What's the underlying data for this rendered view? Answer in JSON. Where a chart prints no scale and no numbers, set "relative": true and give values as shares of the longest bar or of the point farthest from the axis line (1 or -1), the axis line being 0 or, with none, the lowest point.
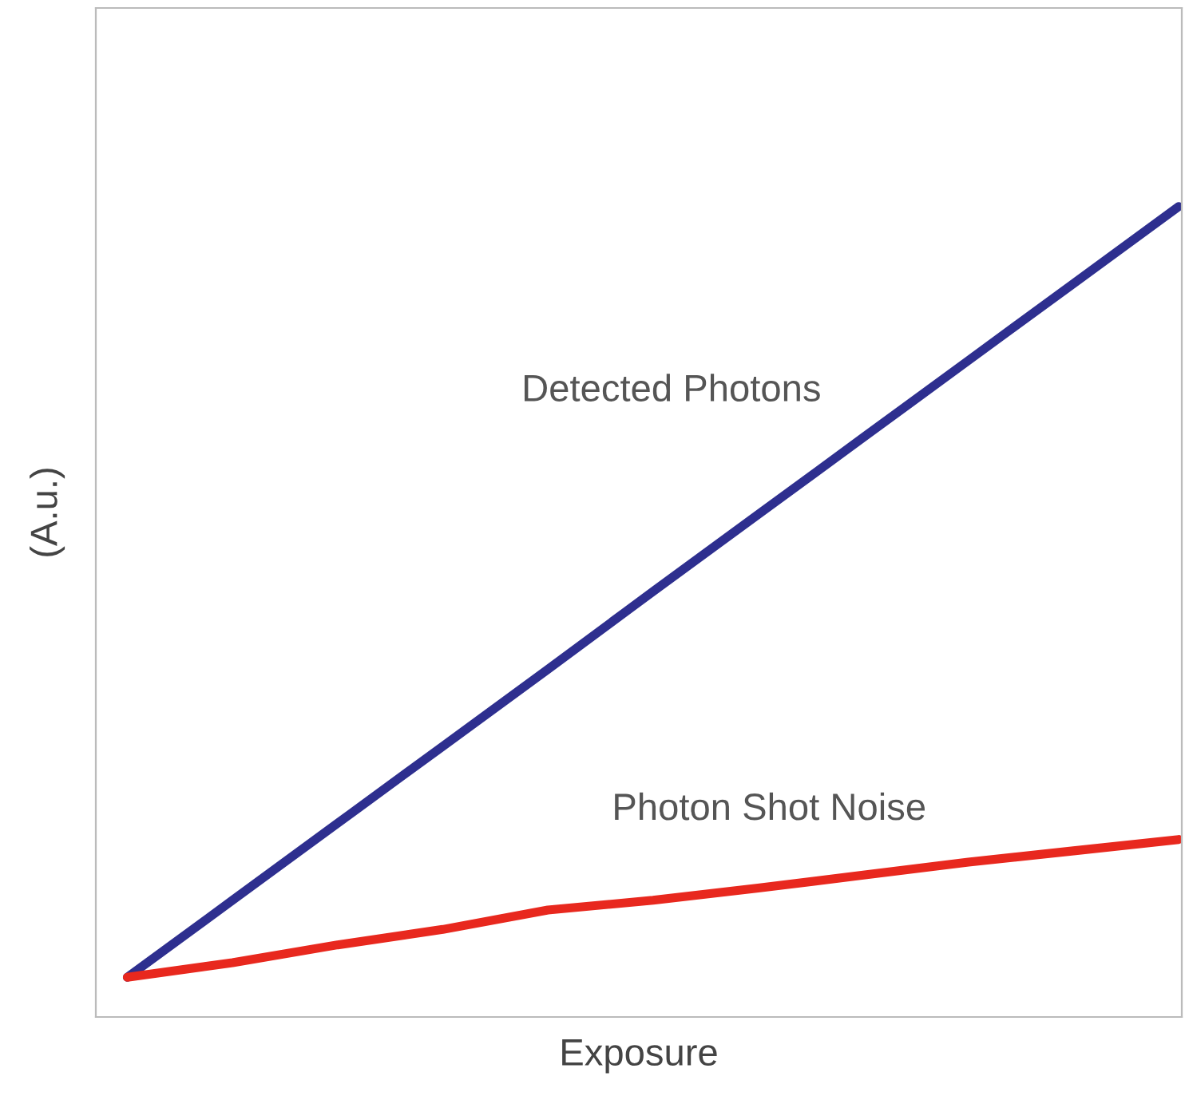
{
  "chart_data": {
    "type": "line",
    "relative": true,
    "xlabel": "Exposure",
    "ylabel": "(A.u.)",
    "categories": [
      null,
      null,
      null,
      null,
      null,
      null,
      null,
      null,
      null,
      null,
      null
    ],
    "series": [
      {
        "name": "Detected Photons",
        "color": "#2e2f8f",
        "values": [
          0.049,
          0.144,
          0.239,
          0.334,
          0.429,
          0.525,
          0.62,
          0.715,
          0.81,
          0.905,
          1
        ]
      },
      {
        "name": "Photon Shot Noise",
        "color": "#e8281e",
        "values": [
          0.049,
          0.067,
          0.089,
          0.108,
          0.132,
          0.144,
          0.159,
          0.175,
          0.191,
          0.205,
          0.219
        ]
      }
    ],
    "grid": false,
    "legend": false
  }
}
